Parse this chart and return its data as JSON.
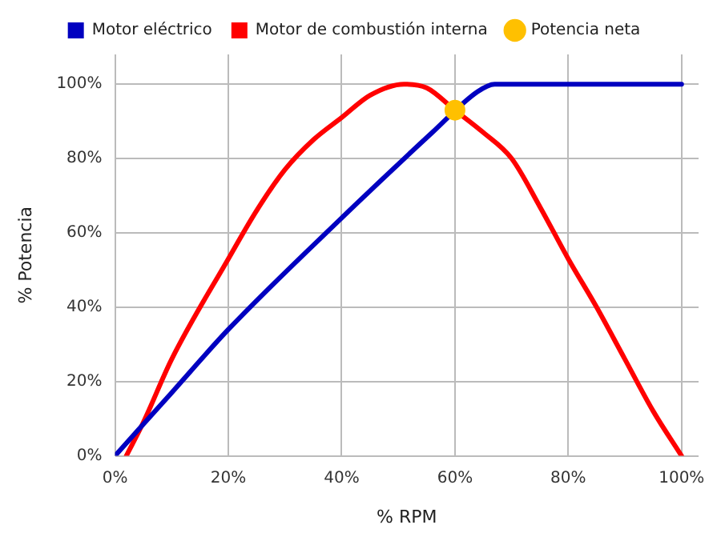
{
  "chart_data": {
    "type": "line",
    "xlabel": "% RPM",
    "ylabel": "% Potencia",
    "xlim": [
      0,
      103
    ],
    "ylim": [
      0,
      108
    ],
    "xticks": [
      {
        "value": 0,
        "label": "0%"
      },
      {
        "value": 20,
        "label": "20%"
      },
      {
        "value": 40,
        "label": "40%"
      },
      {
        "value": 60,
        "label": "60%"
      },
      {
        "value": 80,
        "label": "80%"
      },
      {
        "value": 100,
        "label": "100%"
      }
    ],
    "yticks": [
      {
        "value": 0,
        "label": "0%"
      },
      {
        "value": 20,
        "label": "20%"
      },
      {
        "value": 40,
        "label": "40%"
      },
      {
        "value": 60,
        "label": "60%"
      },
      {
        "value": 80,
        "label": "80%"
      },
      {
        "value": 100,
        "label": "100%"
      }
    ],
    "grid": true,
    "legend": "top",
    "marker": "none",
    "line_style": "solid",
    "series": [
      {
        "name": "Motor eléctrico",
        "color": "#0000c0",
        "x": [
          0,
          10,
          20,
          40,
          56,
          64,
          67,
          80,
          100
        ],
        "values": [
          0,
          17,
          34,
          64,
          87,
          98,
          100,
          100,
          100
        ]
      },
      {
        "name": "Motor de combustión interna",
        "color": "#ff0000",
        "x": [
          2,
          5,
          10,
          20,
          25,
          30,
          35,
          40,
          45,
          51,
          55,
          60,
          65,
          70,
          75,
          80,
          85,
          90,
          95,
          100
        ],
        "values": [
          0,
          9,
          26,
          53,
          66,
          77,
          85,
          91,
          97,
          100,
          99,
          93,
          87,
          80,
          67,
          53,
          40,
          26,
          12,
          0
        ]
      },
      {
        "name": "Potencia neta",
        "type": "scatter",
        "marker": "circle",
        "color": "#ffc000",
        "x": [
          60
        ],
        "values": [
          93
        ]
      }
    ]
  }
}
